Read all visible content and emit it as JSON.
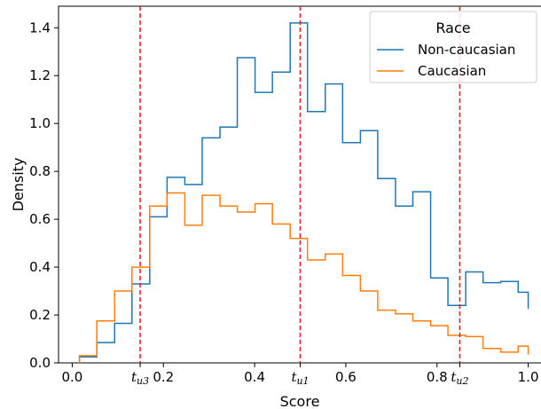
{
  "chart_data": {
    "type": "histogram-step",
    "xlabel": "Score",
    "ylabel": "Density",
    "xlim": [
      -0.03,
      1.03
    ],
    "ylim": [
      0.0,
      1.49
    ],
    "bin_width": 0.0385,
    "x_ticks": [
      {
        "value": 0.0,
        "label": "0.0"
      },
      {
        "value": 0.2,
        "label": "0.2"
      },
      {
        "value": 0.4,
        "label": "0.4"
      },
      {
        "value": 0.6,
        "label": "0.6"
      },
      {
        "value": 0.8,
        "label": "0.8"
      },
      {
        "value": 1.0,
        "label": "1.0"
      }
    ],
    "y_ticks": [
      {
        "value": 0.0,
        "label": "0.0"
      },
      {
        "value": 0.2,
        "label": "0.2"
      },
      {
        "value": 0.4,
        "label": "0.4"
      },
      {
        "value": 0.6,
        "label": "0.6"
      },
      {
        "value": 0.8,
        "label": "0.8"
      },
      {
        "value": 1.0,
        "label": "1.0"
      },
      {
        "value": 1.2,
        "label": "1.2"
      },
      {
        "value": 1.4,
        "label": "1.4"
      }
    ],
    "legend": {
      "title": "Race",
      "placement": "top-right"
    },
    "series": [
      {
        "name": "Non-caucasian",
        "color": "#1f77b4",
        "bin_edges": [
          0.016,
          0.054,
          0.093,
          0.131,
          0.17,
          0.208,
          0.247,
          0.285,
          0.324,
          0.362,
          0.401,
          0.439,
          0.478,
          0.516,
          0.555,
          0.593,
          0.632,
          0.67,
          0.709,
          0.747,
          0.786,
          0.824,
          0.863,
          0.901,
          0.94,
          0.978,
          1.0
        ],
        "values": [
          0.025,
          0.085,
          0.165,
          0.33,
          0.61,
          0.775,
          0.745,
          0.94,
          0.985,
          1.275,
          1.13,
          1.215,
          1.42,
          1.05,
          1.165,
          0.92,
          0.97,
          0.77,
          0.655,
          0.715,
          0.355,
          0.24,
          0.38,
          0.335,
          0.34,
          0.295,
          0.225
        ]
      },
      {
        "name": "Caucasian",
        "color": "#ff7f0e",
        "bin_edges": [
          0.016,
          0.054,
          0.093,
          0.131,
          0.17,
          0.208,
          0.247,
          0.285,
          0.324,
          0.362,
          0.401,
          0.439,
          0.478,
          0.516,
          0.555,
          0.593,
          0.632,
          0.67,
          0.709,
          0.747,
          0.786,
          0.824,
          0.863,
          0.901,
          0.94,
          0.978,
          1.0
        ],
        "values": [
          0.03,
          0.175,
          0.3,
          0.4,
          0.655,
          0.71,
          0.575,
          0.7,
          0.655,
          0.63,
          0.665,
          0.58,
          0.52,
          0.43,
          0.455,
          0.365,
          0.3,
          0.22,
          0.205,
          0.175,
          0.155,
          0.115,
          0.11,
          0.06,
          0.045,
          0.07,
          0.035
        ]
      }
    ],
    "thresholds": [
      {
        "x": 0.149,
        "label": "t",
        "subscript": "u3",
        "color": "#e41a1c"
      },
      {
        "x": 0.5,
        "label": "t",
        "subscript": "u1",
        "color": "#e41a1c"
      },
      {
        "x": 0.85,
        "label": "t",
        "subscript": "u2",
        "color": "#e41a1c"
      }
    ]
  }
}
